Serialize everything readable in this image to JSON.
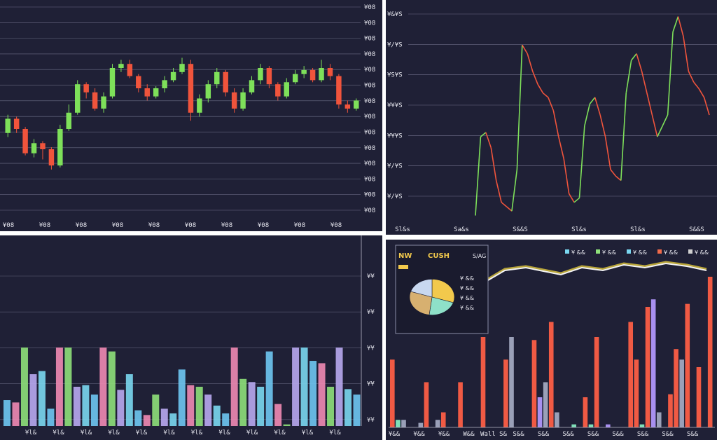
{
  "colors": {
    "background": "#1f2036",
    "grid": "#8a8ca6",
    "up": "#7ee05a",
    "down": "#f0543c",
    "line_light": "#f2f2f2",
    "line_gold": "#c9b43c"
  },
  "chart_data": [
    {
      "type": "candlestick",
      "title": "",
      "y_tick_labels": [
        "¥08",
        "¥08",
        "¥08",
        "¥08",
        "¥08",
        "¥08",
        "¥08",
        "¥08",
        "¥08",
        "¥08",
        "¥08",
        "¥08",
        "¥08",
        "¥08"
      ],
      "x_tick_labels": [
        "¥08",
        "¥08",
        "¥08",
        "¥08",
        "¥08",
        "¥08",
        "¥08",
        "¥08",
        "¥08",
        "¥08"
      ],
      "ylim": [
        0,
        100
      ],
      "grid": true,
      "candles": [
        {
          "o": 38,
          "c": 45,
          "h": 47,
          "l": 36
        },
        {
          "o": 45,
          "c": 40,
          "h": 46,
          "l": 38
        },
        {
          "o": 40,
          "c": 28,
          "h": 41,
          "l": 27
        },
        {
          "o": 28,
          "c": 33,
          "h": 35,
          "l": 26
        },
        {
          "o": 33,
          "c": 30,
          "h": 34,
          "l": 25
        },
        {
          "o": 30,
          "c": 22,
          "h": 31,
          "l": 20
        },
        {
          "o": 22,
          "c": 40,
          "h": 42,
          "l": 21
        },
        {
          "o": 40,
          "c": 48,
          "h": 52,
          "l": 39
        },
        {
          "o": 48,
          "c": 62,
          "h": 64,
          "l": 47
        },
        {
          "o": 62,
          "c": 58,
          "h": 63,
          "l": 55
        },
        {
          "o": 58,
          "c": 50,
          "h": 60,
          "l": 49
        },
        {
          "o": 50,
          "c": 56,
          "h": 58,
          "l": 48
        },
        {
          "o": 56,
          "c": 70,
          "h": 72,
          "l": 55
        },
        {
          "o": 70,
          "c": 72,
          "h": 74,
          "l": 68
        },
        {
          "o": 72,
          "c": 66,
          "h": 74,
          "l": 65
        },
        {
          "o": 66,
          "c": 60,
          "h": 67,
          "l": 58
        },
        {
          "o": 60,
          "c": 56,
          "h": 62,
          "l": 54
        },
        {
          "o": 56,
          "c": 60,
          "h": 61,
          "l": 55
        },
        {
          "o": 60,
          "c": 64,
          "h": 66,
          "l": 58
        },
        {
          "o": 64,
          "c": 68,
          "h": 70,
          "l": 63
        },
        {
          "o": 68,
          "c": 72,
          "h": 75,
          "l": 67
        },
        {
          "o": 72,
          "c": 48,
          "h": 74,
          "l": 44
        },
        {
          "o": 48,
          "c": 55,
          "h": 57,
          "l": 46
        },
        {
          "o": 55,
          "c": 62,
          "h": 64,
          "l": 53
        },
        {
          "o": 62,
          "c": 68,
          "h": 70,
          "l": 60
        },
        {
          "o": 68,
          "c": 58,
          "h": 69,
          "l": 56
        },
        {
          "o": 58,
          "c": 50,
          "h": 60,
          "l": 48
        },
        {
          "o": 50,
          "c": 58,
          "h": 60,
          "l": 49
        },
        {
          "o": 58,
          "c": 64,
          "h": 66,
          "l": 57
        },
        {
          "o": 64,
          "c": 70,
          "h": 72,
          "l": 62
        },
        {
          "o": 70,
          "c": 62,
          "h": 71,
          "l": 60
        },
        {
          "o": 62,
          "c": 56,
          "h": 63,
          "l": 54
        },
        {
          "o": 56,
          "c": 63,
          "h": 65,
          "l": 55
        },
        {
          "o": 63,
          "c": 67,
          "h": 69,
          "l": 62
        },
        {
          "o": 67,
          "c": 69,
          "h": 71,
          "l": 65
        },
        {
          "o": 69,
          "c": 64,
          "h": 70,
          "l": 63
        },
        {
          "o": 64,
          "c": 70,
          "h": 74,
          "l": 63
        },
        {
          "o": 70,
          "c": 66,
          "h": 72,
          "l": 64
        },
        {
          "o": 66,
          "c": 52,
          "h": 67,
          "l": 50
        },
        {
          "o": 52,
          "c": 50,
          "h": 54,
          "l": 48
        },
        {
          "o": 50,
          "c": 54,
          "h": 55,
          "l": 49
        }
      ]
    },
    {
      "type": "line",
      "title": "",
      "y_tick_labels": [
        "¥&¥S",
        "¥/¥S",
        "¥S¥S",
        "¥¥¥S",
        "¥¥¥S",
        "¥/¥S",
        "¥/¥S"
      ],
      "x_tick_labels": [
        "Sl&s",
        "Sa&s",
        "S&&S",
        "Sl&s",
        "Sl&s",
        "S&&S"
      ],
      "ylim": [
        0,
        100
      ],
      "grid": true,
      "series": [
        {
          "color_key": "line_up_down",
          "values": [
            4,
            40,
            42,
            35,
            20,
            10,
            8,
            6,
            25,
            82,
            78,
            70,
            64,
            60,
            58,
            52,
            40,
            30,
            14,
            10,
            12,
            45,
            55,
            58,
            50,
            40,
            25,
            22,
            20,
            60,
            75,
            78,
            70,
            60,
            50,
            40,
            45,
            50,
            88,
            95,
            86,
            70,
            65,
            62,
            58,
            50
          ]
        }
      ]
    },
    {
      "type": "bar",
      "title": "",
      "y_tick_labels": [
        "¥¥",
        "¥¥",
        "¥¥",
        "¥¥",
        "¥¥",
        "¥¥"
      ],
      "x_tick_labels": [
        "¥l&",
        "¥l&",
        "¥l&",
        "¥l&",
        "¥l&",
        "¥l&",
        "¥l&",
        "¥l&",
        "¥l&",
        "¥l&",
        "¥l&",
        "¥l&"
      ],
      "ylim": [
        0,
        100
      ],
      "grid": true,
      "palette": [
        "#6ec6f2",
        "#f08ab4",
        "#8ee07a",
        "#b8a8f0",
        "#7ad7f0"
      ],
      "values": [
        33,
        30,
        100,
        66,
        70,
        22,
        100,
        100,
        50,
        52,
        40,
        100,
        95,
        46,
        66,
        20,
        14,
        40,
        22,
        16,
        72,
        52,
        50,
        40,
        26,
        16,
        100,
        60,
        56,
        50,
        95,
        28,
        2,
        100,
        100,
        83,
        80,
        50,
        100,
        47,
        40
      ]
    },
    {
      "type": "bar",
      "title": "",
      "x_tick_labels": [
        "¥&&",
        "¥&&",
        "¥&&",
        "W&&",
        "Wall S&",
        "S&&",
        "S&&",
        "S&&",
        "S&&",
        "S&&",
        "S&&",
        "S&&",
        "S&&"
      ],
      "legend": [
        "¥ &&",
        "¥ &&",
        "¥ &&",
        "¥ &&",
        "¥ &&"
      ],
      "legend_colors": [
        "#7ad7f0",
        "#8ee07a",
        "#7ad7f0",
        "#f06a4a",
        "#d0d0d0"
      ],
      "inset": {
        "labels": [
          "NW",
          "CUSH",
          "S/AG"
        ],
        "pie_legend": [
          "¥ &&",
          "¥ &&",
          "¥ &&",
          "¥ &&"
        ],
        "pie_slices": [
          {
            "value": 30,
            "color": "#f2c94c"
          },
          {
            "value": 22,
            "color": "#8ee0c8"
          },
          {
            "value": 28,
            "color": "#d7b070"
          },
          {
            "value": 20,
            "color": "#c8d8f0"
          }
        ]
      },
      "values": [
        45,
        5,
        5,
        0,
        0,
        3,
        30,
        0,
        5,
        10,
        0,
        0,
        30,
        0,
        0,
        0,
        60,
        0,
        0,
        0,
        45,
        60,
        0,
        0,
        0,
        58,
        20,
        30,
        70,
        10,
        0,
        0,
        2,
        0,
        20,
        2,
        60,
        0,
        2,
        0,
        0,
        0,
        70,
        45,
        2,
        80,
        85,
        10,
        0,
        22,
        52,
        45,
        82,
        0,
        40,
        0,
        100
      ],
      "colors_idx": [
        0,
        1,
        2,
        1,
        1,
        2,
        0,
        1,
        2,
        0,
        1,
        1,
        0,
        1,
        1,
        1,
        0,
        1,
        1,
        1,
        0,
        2,
        1,
        1,
        1,
        0,
        3,
        2,
        0,
        2,
        1,
        1,
        1,
        1,
        0,
        1,
        0,
        1,
        3,
        1,
        1,
        1,
        0,
        0,
        1,
        0,
        3,
        2,
        1,
        0,
        0,
        2,
        0,
        1,
        0,
        1,
        0
      ]
    }
  ]
}
